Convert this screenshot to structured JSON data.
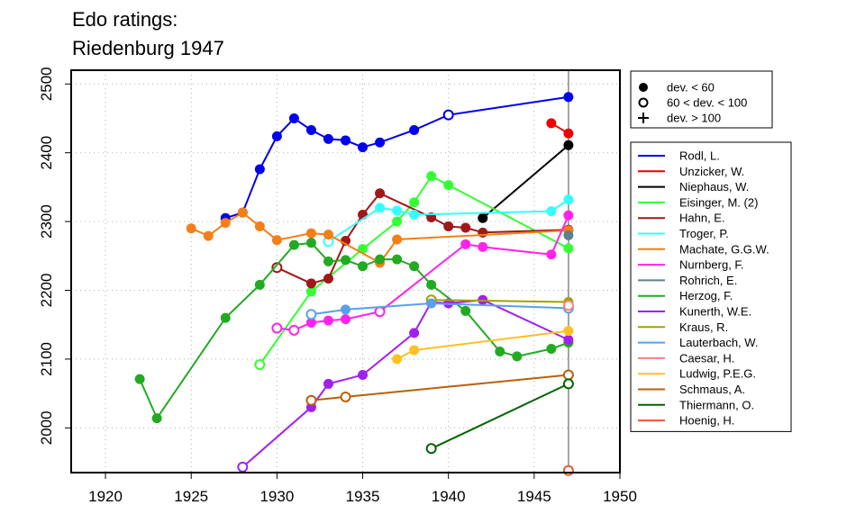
{
  "chart_data": {
    "type": "line",
    "title": [
      "Edo ratings:",
      "Riedenburg 1947"
    ],
    "xlabel": "",
    "ylabel": "",
    "xlim": [
      1918,
      1950
    ],
    "ylim": [
      1935,
      2520
    ],
    "xticks": [
      1920,
      1925,
      1930,
      1935,
      1940,
      1945,
      1950
    ],
    "yticks": [
      2000,
      2100,
      2200,
      2300,
      2400,
      2500
    ],
    "grid": true,
    "event_year": 1947,
    "legend_marker_title": null,
    "marker_legend": [
      {
        "label": "dev. < 60",
        "symbol": "filled"
      },
      {
        "label": "60 < dev. < 100",
        "symbol": "open"
      },
      {
        "label": "dev. > 100",
        "symbol": "plus"
      }
    ],
    "legend_placement": "right",
    "series": [
      {
        "name": "Rodl, L.",
        "color": "#0000ee",
        "points": [
          [
            1927,
            2305,
            "f"
          ],
          [
            1928,
            2313,
            "f"
          ],
          [
            1929,
            2376,
            "f"
          ],
          [
            1930,
            2424,
            "f"
          ],
          [
            1931,
            2450,
            "f"
          ],
          [
            1932,
            2433,
            "f"
          ],
          [
            1933,
            2420,
            "f"
          ],
          [
            1934,
            2418,
            "f"
          ],
          [
            1935,
            2408,
            "f"
          ],
          [
            1936,
            2415,
            "f"
          ],
          [
            1938,
            2433,
            "f"
          ],
          [
            1940,
            2455,
            "o"
          ],
          [
            1947,
            2481,
            "f"
          ]
        ]
      },
      {
        "name": "Unzicker, W.",
        "color": "#ee0000",
        "points": [
          [
            1946,
            2443,
            "f"
          ],
          [
            1947,
            2428,
            "f"
          ]
        ]
      },
      {
        "name": "Niephaus, W.",
        "color": "#000000",
        "points": [
          [
            1942,
            2305,
            "f"
          ],
          [
            1947,
            2411,
            "f"
          ]
        ]
      },
      {
        "name": "Eisinger, M. (2)",
        "color": "#33ff33",
        "points": [
          [
            1929,
            2092,
            "o"
          ],
          [
            1932,
            2198,
            "f"
          ],
          [
            1935,
            2260,
            "f"
          ],
          [
            1937,
            2300,
            "f"
          ],
          [
            1938,
            2328,
            "f"
          ],
          [
            1939,
            2366,
            "f"
          ],
          [
            1940,
            2353,
            "f"
          ],
          [
            1947,
            2261,
            "f"
          ]
        ]
      },
      {
        "name": "Hahn, E.",
        "color": "#a01818",
        "points": [
          [
            1930,
            2233,
            "o"
          ],
          [
            1932,
            2210,
            "f"
          ],
          [
            1933,
            2217,
            "f"
          ],
          [
            1934,
            2272,
            "f"
          ],
          [
            1935,
            2310,
            "f"
          ],
          [
            1936,
            2341,
            "f"
          ],
          [
            1939,
            2306,
            "f"
          ],
          [
            1940,
            2293,
            "f"
          ],
          [
            1941,
            2291,
            "f"
          ],
          [
            1942,
            2284,
            "f"
          ],
          [
            1947,
            2288,
            "f"
          ]
        ]
      },
      {
        "name": "Troger, P.",
        "color": "#33ffff",
        "points": [
          [
            1933,
            2271,
            "o"
          ],
          [
            1936,
            2320,
            "f"
          ],
          [
            1937,
            2316,
            "f"
          ],
          [
            1938,
            2310,
            "f"
          ],
          [
            1946,
            2315,
            "f"
          ],
          [
            1947,
            2332,
            "f"
          ]
        ]
      },
      {
        "name": "Machate, G.G.W.",
        "color": "#f57f17",
        "points": [
          [
            1925,
            2290,
            "f"
          ],
          [
            1926,
            2279,
            "f"
          ],
          [
            1927,
            2298,
            "f"
          ],
          [
            1928,
            2313,
            "f"
          ],
          [
            1929,
            2293,
            "f"
          ],
          [
            1930,
            2273,
            "f"
          ],
          [
            1932,
            2283,
            "f"
          ],
          [
            1933,
            2281,
            "f"
          ],
          [
            1936,
            2240,
            "f"
          ],
          [
            1937,
            2274,
            "f"
          ],
          [
            1947,
            2287,
            "f"
          ]
        ]
      },
      {
        "name": "Nurnberg, F.",
        "color": "#ff22ee",
        "points": [
          [
            1930,
            2145,
            "o"
          ],
          [
            1931,
            2142,
            "o"
          ],
          [
            1932,
            2153,
            "f"
          ],
          [
            1933,
            2156,
            "f"
          ],
          [
            1934,
            2158,
            "f"
          ],
          [
            1936,
            2169,
            "o"
          ],
          [
            1941,
            2267,
            "f"
          ],
          [
            1942,
            2263,
            "f"
          ],
          [
            1946,
            2252,
            "f"
          ],
          [
            1947,
            2309,
            "f"
          ]
        ]
      },
      {
        "name": "Rohrich, E.",
        "color": "#5f7f8f",
        "points": [
          [
            1947,
            2280,
            "f"
          ]
        ]
      },
      {
        "name": "Herzog, F.",
        "color": "#22aa22",
        "points": [
          [
            1922,
            2071,
            "f"
          ],
          [
            1923,
            2014,
            "f"
          ],
          [
            1927,
            2160,
            "f"
          ],
          [
            1929,
            2208,
            "f"
          ],
          [
            1931,
            2266,
            "f"
          ],
          [
            1932,
            2269,
            "f"
          ],
          [
            1933,
            2242,
            "f"
          ],
          [
            1934,
            2244,
            "f"
          ],
          [
            1935,
            2235,
            "f"
          ],
          [
            1936,
            2245,
            "f"
          ],
          [
            1937,
            2245,
            "f"
          ],
          [
            1938,
            2235,
            "f"
          ],
          [
            1939,
            2208,
            "f"
          ],
          [
            1941,
            2170,
            "f"
          ],
          [
            1943,
            2111,
            "f"
          ],
          [
            1944,
            2104,
            "f"
          ],
          [
            1946,
            2115,
            "f"
          ],
          [
            1947,
            2124,
            "f"
          ]
        ]
      },
      {
        "name": "Kunerth, W.E.",
        "color": "#a020f0",
        "points": [
          [
            1928,
            1943,
            "o"
          ],
          [
            1932,
            2030,
            "f"
          ],
          [
            1933,
            2064,
            "f"
          ],
          [
            1935,
            2077,
            "f"
          ],
          [
            1938,
            2138,
            "f"
          ],
          [
            1939,
            2183,
            "f"
          ],
          [
            1940,
            2181,
            "f"
          ],
          [
            1942,
            2186,
            "f"
          ],
          [
            1947,
            2128,
            "f"
          ]
        ]
      },
      {
        "name": "Kraus, R.",
        "color": "#a0a000",
        "points": [
          [
            1939,
            2186,
            "o"
          ],
          [
            1947,
            2183,
            "f"
          ]
        ]
      },
      {
        "name": "Lauterbach, W.",
        "color": "#5aa0e8",
        "points": [
          [
            1932,
            2165,
            "o"
          ],
          [
            1934,
            2172,
            "f"
          ],
          [
            1939,
            2181,
            "f"
          ],
          [
            1947,
            2174,
            "o"
          ]
        ]
      },
      {
        "name": "Caesar, H.",
        "color": "#ff8080",
        "points": [
          [
            1947,
            2178,
            "o"
          ]
        ]
      },
      {
        "name": "Ludwig, P.E.G.",
        "color": "#ffc020",
        "points": [
          [
            1937,
            2100,
            "f"
          ],
          [
            1938,
            2113,
            "f"
          ],
          [
            1947,
            2141,
            "f"
          ]
        ]
      },
      {
        "name": "Schmaus, A.",
        "color": "#b8600c",
        "points": [
          [
            1932,
            2040,
            "o"
          ],
          [
            1934,
            2045,
            "o"
          ],
          [
            1947,
            2077,
            "o"
          ]
        ]
      },
      {
        "name": "Thiermann, O.",
        "color": "#006400",
        "points": [
          [
            1939,
            1970,
            "o"
          ],
          [
            1947,
            2064,
            "o"
          ]
        ]
      },
      {
        "name": "Hoenig, H.",
        "color": "#ee5533",
        "points": [
          [
            1947,
            1938,
            "o"
          ]
        ]
      }
    ]
  }
}
